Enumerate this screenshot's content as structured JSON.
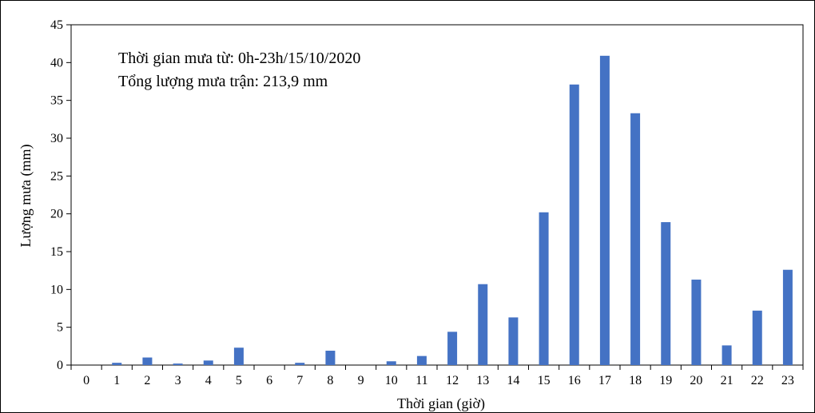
{
  "chart_data": {
    "type": "bar",
    "xlabel": "Thời gian (giờ)",
    "ylabel": "Lượng mưa (mm)",
    "ylim": [
      0,
      45
    ],
    "yticks": [
      0,
      5,
      10,
      15,
      20,
      25,
      30,
      35,
      40,
      45
    ],
    "categories": [
      "0",
      "1",
      "2",
      "3",
      "4",
      "5",
      "6",
      "7",
      "8",
      "9",
      "10",
      "11",
      "12",
      "13",
      "14",
      "15",
      "16",
      "17",
      "18",
      "19",
      "20",
      "21",
      "22",
      "23"
    ],
    "values": [
      0,
      0.3,
      1.0,
      0.2,
      0.6,
      2.3,
      0,
      0.3,
      1.9,
      0,
      0.5,
      1.2,
      4.4,
      10.7,
      6.3,
      20.2,
      37.1,
      40.9,
      33.3,
      18.9,
      11.3,
      2.6,
      7.2,
      12.6
    ],
    "bar_color": "#4472C4",
    "grid": false,
    "annotations": [
      "Thời gian mưa từ: 0h-23h/15/10/2020",
      "Tổng lượng mưa trận: 213,9 mm"
    ]
  }
}
